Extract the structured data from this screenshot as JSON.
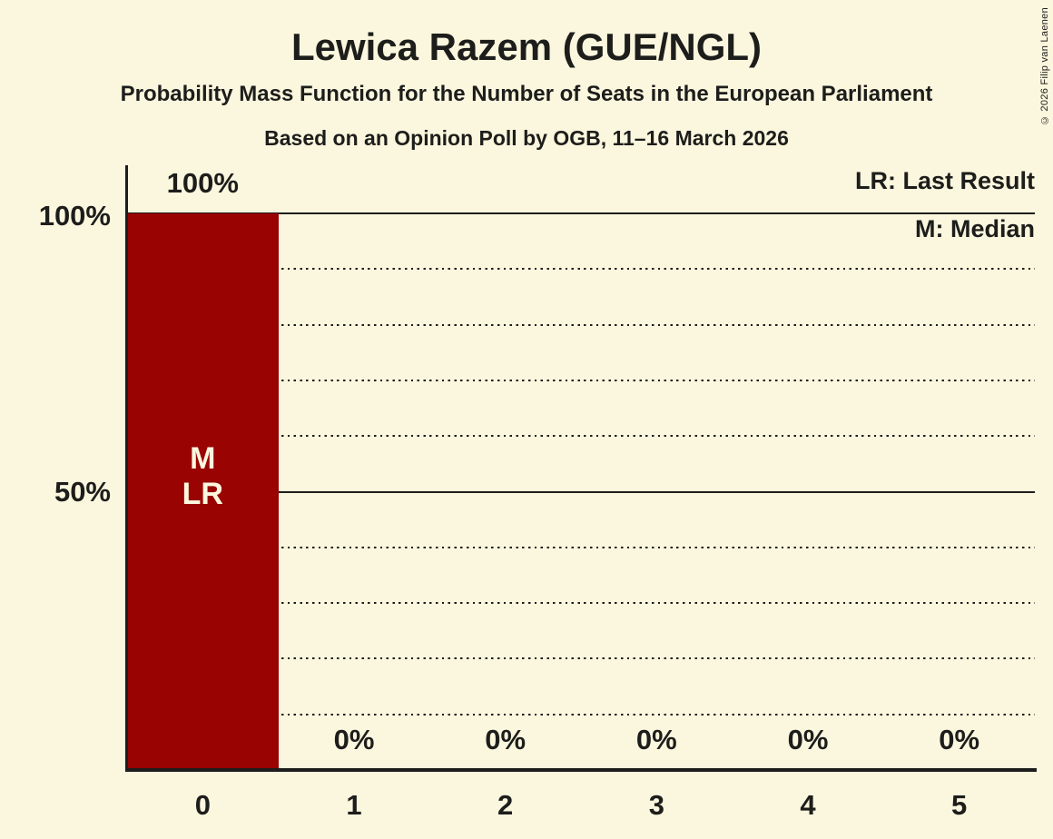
{
  "header": {
    "title": "Lewica Razem (GUE/NGL)",
    "subtitle": "Probability Mass Function for the Number of Seats in the European Parliament",
    "poll_details": "Based on an Opinion Poll by OGB, 11–16 March 2026",
    "copyright": "© 2026 Filip van Laenen"
  },
  "legend": {
    "last_result": "LR: Last Result",
    "median": "M: Median"
  },
  "y_axis": {
    "label_100": "100%",
    "label_50": "50%"
  },
  "chart_data": {
    "type": "bar",
    "title": "Lewica Razem (GUE/NGL)",
    "categories": [
      "0",
      "1",
      "2",
      "3",
      "4",
      "5"
    ],
    "values": [
      100,
      0,
      0,
      0,
      0,
      0
    ],
    "value_labels": [
      "100%",
      "0%",
      "0%",
      "0%",
      "0%",
      "0%"
    ],
    "ylim": [
      0,
      100
    ],
    "gridlines_solid_pct": [
      100,
      50
    ],
    "gridlines_dotted_pct": [
      90,
      80,
      70,
      60,
      40,
      30,
      20,
      10
    ],
    "median_marker": "M",
    "last_result_marker": "LR",
    "annotated_bar_index": 0,
    "legend_position": "top-right",
    "colors": {
      "bar": "#990302",
      "background": "#FBF7DE",
      "text": "#1D1D1B",
      "bar_label": "#FBF7DE"
    }
  }
}
